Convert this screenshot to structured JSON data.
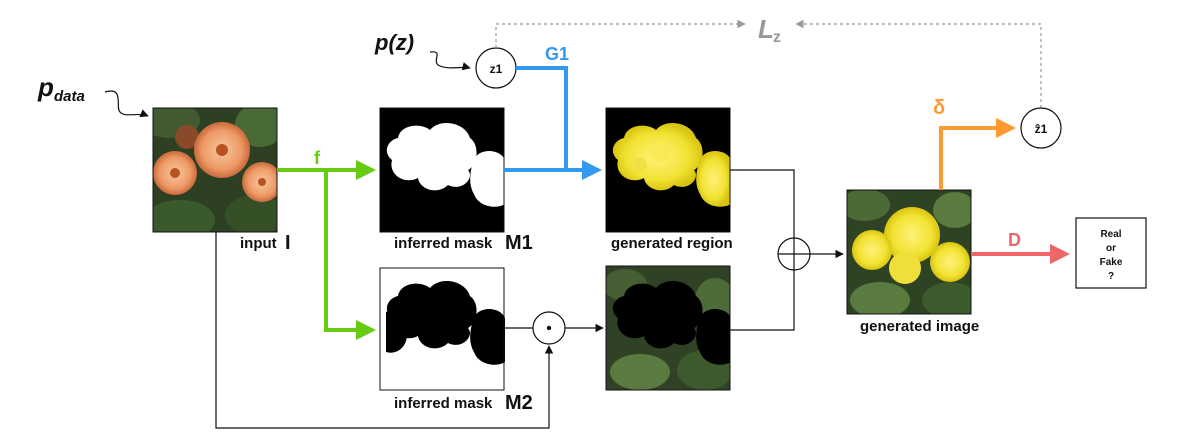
{
  "labels": {
    "p_data": "p",
    "p_data_sub": "data",
    "p_z": "p(z)",
    "z1": "z1",
    "z1_hat": "ẑ1",
    "L": "L",
    "L_sub": "z",
    "G1": "G1",
    "f": "f",
    "delta": "δ",
    "D": "D",
    "input": "input",
    "input_symbol": "I",
    "mask1": "inferred mask",
    "mask1_symbol": "M1",
    "mask2": "inferred mask",
    "mask2_symbol": "M2",
    "generated_region": "generated region",
    "generated_image": "generated image",
    "discriminator_line1": "Real",
    "discriminator_line2": "or",
    "discriminator_line3": "Fake",
    "discriminator_line4": "?"
  },
  "colors": {
    "green": "#66cc11",
    "blue": "#3399ee",
    "orange": "#ff9933",
    "red": "#ee6666",
    "gray": "#999999",
    "black": "#111111"
  },
  "icons": {
    "oplus": "circle-plus-icon",
    "odot": "circle-dot-icon"
  }
}
